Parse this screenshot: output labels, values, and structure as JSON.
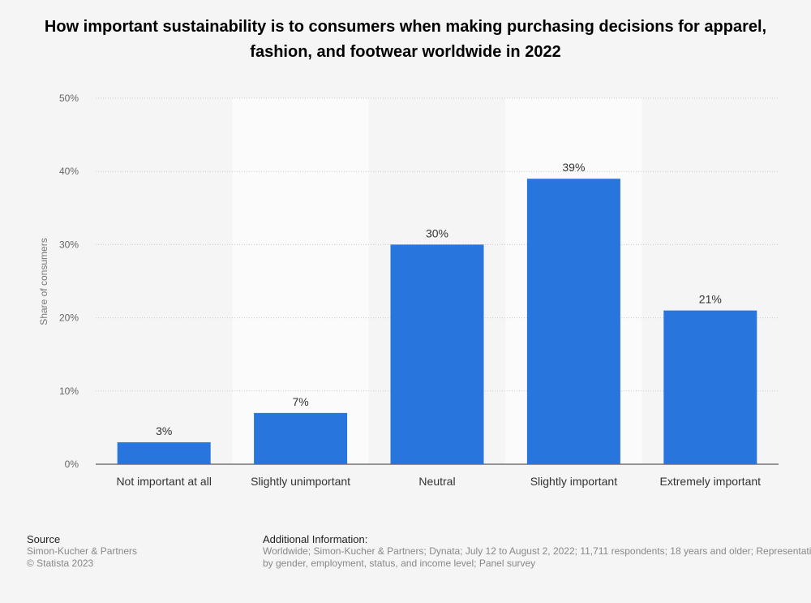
{
  "chart_data": {
    "type": "bar",
    "title": "How important sustainability is to consumers when making purchasing decisions for apparel, fashion, and footwear worldwide in 2022",
    "categories": [
      "Not important at all",
      "Slightly unimportant",
      "Neutral",
      "Slightly important",
      "Extremely important"
    ],
    "values": [
      3,
      7,
      30,
      39,
      21
    ],
    "data_labels": [
      "3%",
      "7%",
      "30%",
      "39%",
      "21%"
    ],
    "ylabel": "Share of consumers",
    "xlabel": "",
    "ylim": [
      0,
      50
    ],
    "yticks": [
      0,
      10,
      20,
      30,
      40,
      50
    ],
    "ytick_labels": [
      "0%",
      "10%",
      "20%",
      "30%",
      "40%",
      "50%"
    ],
    "grid": true,
    "bar_color": "#2876dd"
  },
  "footer": {
    "source_heading": "Source",
    "source_lines": [
      "Simon-Kucher & Partners",
      "© Statista 2023"
    ],
    "additional_heading": "Additional Information:",
    "additional_text": "Worldwide; Simon-Kucher & Partners; Dynata; July 12 to August 2, 2022; 11,711 respondents; 18 years and older; Representative by gender, employment, status, and income level; Panel survey"
  }
}
